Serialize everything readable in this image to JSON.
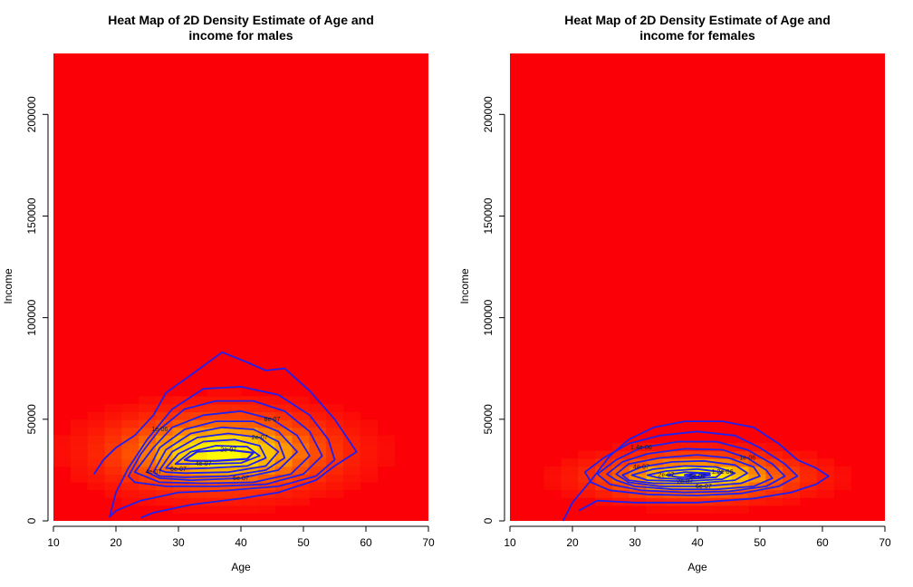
{
  "colors": {
    "heat_low": "#fb0007",
    "heat_mid": "#ff5a00",
    "heat_high": "#ffff00",
    "contour": "#2020ee"
  },
  "chart_data": [
    {
      "type": "heatmap",
      "title": "Heat Map of 2D Density Estimate of Age and income for males",
      "title_lines": [
        "Heat Map of 2D Density Estimate of Age and",
        "income for males"
      ],
      "xlabel": "Age",
      "ylabel": "Income",
      "xlim": [
        10,
        70
      ],
      "ylim": [
        0,
        230000
      ],
      "xticks": [
        10,
        20,
        30,
        40,
        50,
        60,
        70
      ],
      "yticks": [
        0,
        50000,
        100000,
        150000,
        200000
      ],
      "density_peak": {
        "age": 37,
        "income": 34000,
        "age_spread": 11,
        "income_spread": 12000
      },
      "contour_labels": [
        "1e-06",
        "8e-07",
        "6e-07",
        "4e-07",
        "2e-07",
        "6e-07",
        "4e-07",
        "2e-07"
      ],
      "contours": [
        {
          "level": "outer",
          "points": [
            [
              16.5,
              23000
            ],
            [
              18,
              30000
            ],
            [
              20,
              36000
            ],
            [
              23,
              42000
            ],
            [
              26,
              52000
            ],
            [
              28,
              63000
            ],
            [
              33,
              74000
            ],
            [
              37,
              83000
            ],
            [
              41,
              78000
            ],
            [
              44,
              74000
            ],
            [
              47,
              75000
            ],
            [
              51,
              64000
            ],
            [
              55,
              50000
            ],
            [
              58.5,
              34000
            ],
            [
              55,
              27000
            ],
            [
              52,
              20000
            ],
            [
              46,
              14000
            ],
            [
              40,
              11000
            ],
            [
              32,
              8000
            ],
            [
              26,
              4000
            ],
            [
              24,
              1500
            ]
          ]
        },
        {
          "level": "1",
          "points": [
            [
              19,
              2000
            ],
            [
              20,
              14000
            ],
            [
              22,
              26000
            ],
            [
              25,
              40000
            ],
            [
              29,
              55000
            ],
            [
              34,
              65000
            ],
            [
              40,
              66000
            ],
            [
              46,
              62000
            ],
            [
              51,
              52000
            ],
            [
              54,
              40000
            ],
            [
              55,
              30000
            ],
            [
              52,
              22000
            ],
            [
              46,
              17000
            ],
            [
              38,
              15000
            ],
            [
              30,
              14000
            ],
            [
              24,
              10000
            ],
            [
              20,
              5000
            ]
          ]
        },
        {
          "level": "2",
          "points": [
            [
              22,
              22000
            ],
            [
              24,
              33000
            ],
            [
              27,
              45000
            ],
            [
              31,
              55000
            ],
            [
              36,
              59000
            ],
            [
              42,
              59000
            ],
            [
              47,
              54000
            ],
            [
              51,
              44000
            ],
            [
              53,
              32000
            ],
            [
              50,
              23000
            ],
            [
              44,
              18000
            ],
            [
              36,
              17000
            ],
            [
              28,
              17000
            ],
            [
              23,
              19000
            ]
          ]
        },
        {
          "level": "3",
          "points": [
            [
              23,
              24000
            ],
            [
              26,
              36000
            ],
            [
              29,
              46000
            ],
            [
              34,
              52000
            ],
            [
              40,
              54000
            ],
            [
              45,
              50000
            ],
            [
              49,
              42000
            ],
            [
              51,
              32000
            ],
            [
              48,
              23000
            ],
            [
              42,
              19000
            ],
            [
              34,
              18500
            ],
            [
              27,
              19000
            ]
          ]
        },
        {
          "level": "4",
          "points": [
            [
              25,
              24000
            ],
            [
              27,
              36000
            ],
            [
              31,
              45000
            ],
            [
              36,
              49000
            ],
            [
              42,
              49000
            ],
            [
              46,
              44000
            ],
            [
              49,
              34000
            ],
            [
              46,
              25000
            ],
            [
              40,
              21000
            ],
            [
              32,
              20000
            ],
            [
              27,
              21000
            ]
          ]
        },
        {
          "level": "5",
          "points": [
            [
              26,
              24000
            ],
            [
              28,
              35000
            ],
            [
              32,
              43000
            ],
            [
              37,
              46000
            ],
            [
              42,
              45000
            ],
            [
              46,
              39000
            ],
            [
              47,
              31000
            ],
            [
              44,
              25000
            ],
            [
              38,
              22000
            ],
            [
              31,
              21500
            ],
            [
              27,
              22000
            ]
          ]
        },
        {
          "level": "6",
          "points": [
            [
              27,
              25000
            ],
            [
              29,
              34000
            ],
            [
              33,
              41000
            ],
            [
              38,
              43000
            ],
            [
              43,
              41000
            ],
            [
              46,
              34000
            ],
            [
              44,
              27000
            ],
            [
              38,
              24000
            ],
            [
              31,
              23500
            ],
            [
              28,
              24000
            ]
          ]
        },
        {
          "level": "7",
          "points": [
            [
              28,
              26000
            ],
            [
              30,
              33000
            ],
            [
              34,
              39000
            ],
            [
              39,
              40000
            ],
            [
              43,
              37000
            ],
            [
              44,
              31000
            ],
            [
              41,
              27000
            ],
            [
              35,
              26000
            ],
            [
              30,
              25500
            ]
          ]
        },
        {
          "level": "8",
          "points": [
            [
              29.5,
              28000
            ],
            [
              32,
              34000
            ],
            [
              36,
              37000
            ],
            [
              41,
              36500
            ],
            [
              43,
              32000
            ],
            [
              40,
              28500
            ],
            [
              34,
              28000
            ]
          ]
        },
        {
          "level": "9",
          "points": [
            [
              31,
              30000
            ],
            [
              33,
              34000
            ],
            [
              38,
              35000
            ],
            [
              42,
              33500
            ],
            [
              41,
              30500
            ],
            [
              36,
              29500
            ],
            [
              32,
              29500
            ]
          ]
        }
      ]
    },
    {
      "type": "heatmap",
      "title": "Heat Map of 2D Density Estimate of Age and income for females",
      "title_lines": [
        "Heat Map of 2D Density Estimate of Age and",
        "income for females"
      ],
      "xlabel": "Age",
      "ylabel": "Income",
      "xlim": [
        10,
        70
      ],
      "ylim": [
        0,
        230000
      ],
      "xticks": [
        10,
        20,
        30,
        40,
        50,
        60,
        70
      ],
      "yticks": [
        0,
        50000,
        100000,
        150000,
        200000
      ],
      "density_peak": {
        "age": 40,
        "income": 22000,
        "age_spread": 10,
        "income_spread": 7000
      },
      "contour_labels": [
        "1.4e-06",
        "1e-06",
        "6e-07",
        "4e-07",
        "2e-07",
        "1.2e-06",
        "2e-07",
        "6e-07"
      ],
      "contours": [
        {
          "level": "outer",
          "points": [
            [
              18.5,
              0
            ],
            [
              20,
              9000
            ],
            [
              23,
              20000
            ],
            [
              26,
              32000
            ],
            [
              29,
              40000
            ],
            [
              33,
              46000
            ],
            [
              38,
              49000
            ],
            [
              44,
              49000
            ],
            [
              49,
              46000
            ],
            [
              53,
              38000
            ],
            [
              56,
              30000
            ],
            [
              59,
              26000
            ],
            [
              61,
              22000
            ],
            [
              59,
              18000
            ],
            [
              55,
              14000
            ],
            [
              49,
              11000
            ],
            [
              40,
              9000
            ],
            [
              30,
              9000
            ],
            [
              24,
              10000
            ],
            [
              21,
              5000
            ]
          ]
        },
        {
          "level": "1",
          "points": [
            [
              22,
              24000
            ],
            [
              25,
              31000
            ],
            [
              29,
              38000
            ],
            [
              34,
              42000
            ],
            [
              40,
              44000
            ],
            [
              46,
              42000
            ],
            [
              50,
              36000
            ],
            [
              54,
              28000
            ],
            [
              56,
              22000
            ],
            [
              53,
              17000
            ],
            [
              47,
              13500
            ],
            [
              40,
              12500
            ],
            [
              32,
              13000
            ],
            [
              26,
              15000
            ],
            [
              23,
              19000
            ]
          ]
        },
        {
          "level": "2",
          "points": [
            [
              24,
              23000
            ],
            [
              27,
              30000
            ],
            [
              31,
              36000
            ],
            [
              37,
              39000
            ],
            [
              43,
              39000
            ],
            [
              48,
              35000
            ],
            [
              52,
              28000
            ],
            [
              54,
              22000
            ],
            [
              51,
              17000
            ],
            [
              45,
              14500
            ],
            [
              38,
              14000
            ],
            [
              31,
              15000
            ],
            [
              26,
              18000
            ]
          ]
        },
        {
          "level": "3",
          "points": [
            [
              25.5,
              23000
            ],
            [
              28,
              29000
            ],
            [
              32,
              33000
            ],
            [
              38,
              35500
            ],
            [
              44,
              35000
            ],
            [
              48,
              31000
            ],
            [
              51,
              25000
            ],
            [
              52,
              21000
            ],
            [
              49,
              17000
            ],
            [
              43,
              15500
            ],
            [
              36,
              15500
            ],
            [
              30,
              17000
            ],
            [
              27,
              20000
            ]
          ]
        },
        {
          "level": "4",
          "points": [
            [
              27,
              23000
            ],
            [
              29,
              28000
            ],
            [
              34,
              31000
            ],
            [
              40,
              32500
            ],
            [
              45,
              31000
            ],
            [
              49,
              26500
            ],
            [
              50,
              22000
            ],
            [
              47,
              18500
            ],
            [
              41,
              17000
            ],
            [
              34,
              17000
            ],
            [
              29,
              19000
            ]
          ]
        },
        {
          "level": "5",
          "points": [
            [
              28,
              22500
            ],
            [
              31,
              26500
            ],
            [
              36,
              29000
            ],
            [
              41,
              29500
            ],
            [
              46,
              27500
            ],
            [
              48,
              23500
            ],
            [
              46,
              20000
            ],
            [
              40,
              18500
            ],
            [
              33,
              18500
            ],
            [
              29,
              20000
            ]
          ]
        },
        {
          "level": "6",
          "points": [
            [
              29.5,
              22500
            ],
            [
              33,
              25500
            ],
            [
              38,
              27000
            ],
            [
              43,
              26500
            ],
            [
              46,
              23500
            ],
            [
              44,
              20500
            ],
            [
              38,
              19500
            ],
            [
              32,
              20000
            ]
          ]
        },
        {
          "level": "7",
          "points": [
            [
              32,
              22500
            ],
            [
              35,
              24500
            ],
            [
              40,
              25500
            ],
            [
              44,
              24000
            ],
            [
              43,
              21500
            ],
            [
              38,
              20500
            ],
            [
              34,
              21000
            ]
          ]
        },
        {
          "level": "8",
          "points": [
            [
              35,
              22500
            ],
            [
              38,
              24000
            ],
            [
              42,
              23500
            ],
            [
              41,
              21500
            ],
            [
              37,
              21500
            ]
          ]
        },
        {
          "level": "9",
          "points": [
            [
              38,
              22500
            ],
            [
              40,
              23500
            ],
            [
              42,
              22500
            ],
            [
              40,
              21800
            ]
          ]
        }
      ]
    }
  ]
}
